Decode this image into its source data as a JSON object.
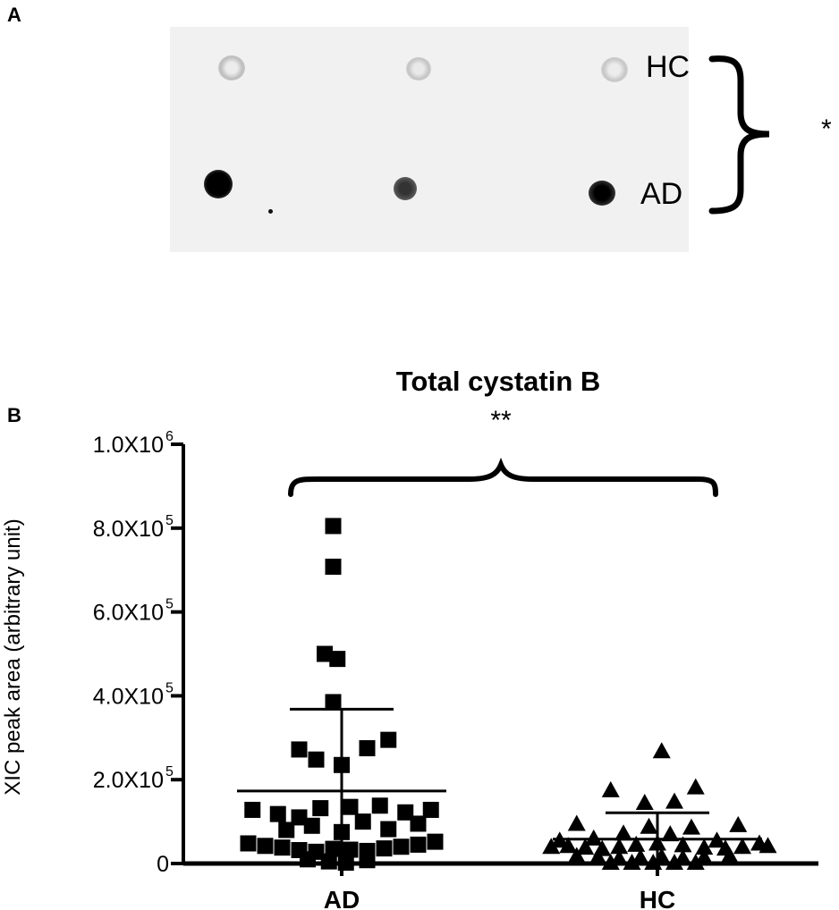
{
  "panel_a": {
    "letter": "A",
    "label_top": "HC",
    "label_bottom": "AD",
    "significance": "*"
  },
  "panel_b": {
    "letter": "B",
    "significance": "**"
  },
  "chart_data": {
    "type": "scatter",
    "title": "Total cystatin B",
    "xlabel": "",
    "ylabel": "XIC peak area (arbitrary unit)",
    "ylim": [
      0,
      1000000
    ],
    "y_ticks": [
      {
        "value": 0,
        "label": "0",
        "exp": ""
      },
      {
        "value": 200000,
        "label": "2.0X10",
        "exp": "5"
      },
      {
        "value": 400000,
        "label": "4.0X10",
        "exp": "5"
      },
      {
        "value": 600000,
        "label": "6.0X10",
        "exp": "5"
      },
      {
        "value": 800000,
        "label": "8.0X10",
        "exp": "5"
      },
      {
        "value": 1000000,
        "label": "1.0X10",
        "exp": "6"
      }
    ],
    "grid": false,
    "categories": [
      "AD",
      "HC"
    ],
    "series": [
      {
        "name": "AD",
        "marker": "square",
        "mean": 173000,
        "sd": 195000,
        "points": [
          {
            "dx": -0.1,
            "y": 805000
          },
          {
            "dx": -0.1,
            "y": 708000
          },
          {
            "dx": -0.2,
            "y": 500000
          },
          {
            "dx": -0.05,
            "y": 488000
          },
          {
            "dx": -0.1,
            "y": 385000
          },
          {
            "dx": -0.5,
            "y": 272000
          },
          {
            "dx": -0.3,
            "y": 248000
          },
          {
            "dx": 0.3,
            "y": 275000
          },
          {
            "dx": 0.55,
            "y": 295000
          },
          {
            "dx": 0.0,
            "y": 235000
          },
          {
            "dx": -1.05,
            "y": 128000
          },
          {
            "dx": -0.75,
            "y": 118000
          },
          {
            "dx": -0.5,
            "y": 110000
          },
          {
            "dx": -0.25,
            "y": 132000
          },
          {
            "dx": 0.1,
            "y": 135000
          },
          {
            "dx": 0.45,
            "y": 138000
          },
          {
            "dx": 0.75,
            "y": 122000
          },
          {
            "dx": 1.05,
            "y": 128000
          },
          {
            "dx": -0.65,
            "y": 80000
          },
          {
            "dx": -0.35,
            "y": 90000
          },
          {
            "dx": 0.0,
            "y": 75000
          },
          {
            "dx": 0.25,
            "y": 100000
          },
          {
            "dx": 0.55,
            "y": 82000
          },
          {
            "dx": 0.9,
            "y": 95000
          },
          {
            "dx": -1.1,
            "y": 48000
          },
          {
            "dx": -0.9,
            "y": 42000
          },
          {
            "dx": -0.7,
            "y": 38000
          },
          {
            "dx": -0.5,
            "y": 32000
          },
          {
            "dx": -0.3,
            "y": 28000
          },
          {
            "dx": -0.1,
            "y": 35000
          },
          {
            "dx": 0.1,
            "y": 33000
          },
          {
            "dx": 0.3,
            "y": 30000
          },
          {
            "dx": 0.5,
            "y": 36000
          },
          {
            "dx": 0.7,
            "y": 40000
          },
          {
            "dx": 0.9,
            "y": 45000
          },
          {
            "dx": 1.1,
            "y": 52000
          },
          {
            "dx": -0.4,
            "y": 10000
          },
          {
            "dx": -0.15,
            "y": 5000
          },
          {
            "dx": 0.05,
            "y": 2000
          },
          {
            "dx": 0.3,
            "y": 8000
          }
        ]
      },
      {
        "name": "HC",
        "marker": "triangle",
        "mean": 58000,
        "sd": 63000,
        "points": [
          {
            "dx": 0.05,
            "y": 268000
          },
          {
            "dx": -0.55,
            "y": 175000
          },
          {
            "dx": 0.45,
            "y": 182000
          },
          {
            "dx": -0.95,
            "y": 95000
          },
          {
            "dx": -0.15,
            "y": 145000
          },
          {
            "dx": 0.2,
            "y": 148000
          },
          {
            "dx": 0.95,
            "y": 92000
          },
          {
            "dx": -1.15,
            "y": 55000
          },
          {
            "dx": -0.75,
            "y": 60000
          },
          {
            "dx": -0.4,
            "y": 72000
          },
          {
            "dx": -0.1,
            "y": 88000
          },
          {
            "dx": 0.15,
            "y": 70000
          },
          {
            "dx": 0.4,
            "y": 86000
          },
          {
            "dx": 0.7,
            "y": 55000
          },
          {
            "dx": 1.2,
            "y": 48000
          },
          {
            "dx": -1.25,
            "y": 40000
          },
          {
            "dx": -1.05,
            "y": 42000
          },
          {
            "dx": -0.85,
            "y": 38000
          },
          {
            "dx": -0.65,
            "y": 35000
          },
          {
            "dx": -0.45,
            "y": 40000
          },
          {
            "dx": -0.25,
            "y": 45000
          },
          {
            "dx": 0.0,
            "y": 48000
          },
          {
            "dx": 0.3,
            "y": 44000
          },
          {
            "dx": 0.55,
            "y": 38000
          },
          {
            "dx": 0.8,
            "y": 36000
          },
          {
            "dx": 1.0,
            "y": 40000
          },
          {
            "dx": 1.3,
            "y": 42000
          },
          {
            "dx": -0.95,
            "y": 18000
          },
          {
            "dx": -0.7,
            "y": 15000
          },
          {
            "dx": -0.45,
            "y": 12000
          },
          {
            "dx": -0.2,
            "y": 14000
          },
          {
            "dx": 0.05,
            "y": 16000
          },
          {
            "dx": 0.3,
            "y": 13000
          },
          {
            "dx": 0.55,
            "y": 15000
          },
          {
            "dx": 0.85,
            "y": 18000
          },
          {
            "dx": -0.55,
            "y": 2000
          },
          {
            "dx": -0.3,
            "y": 2000
          },
          {
            "dx": -0.05,
            "y": 2000
          },
          {
            "dx": 0.2,
            "y": 2000
          },
          {
            "dx": 0.45,
            "y": 2000
          }
        ]
      }
    ]
  }
}
